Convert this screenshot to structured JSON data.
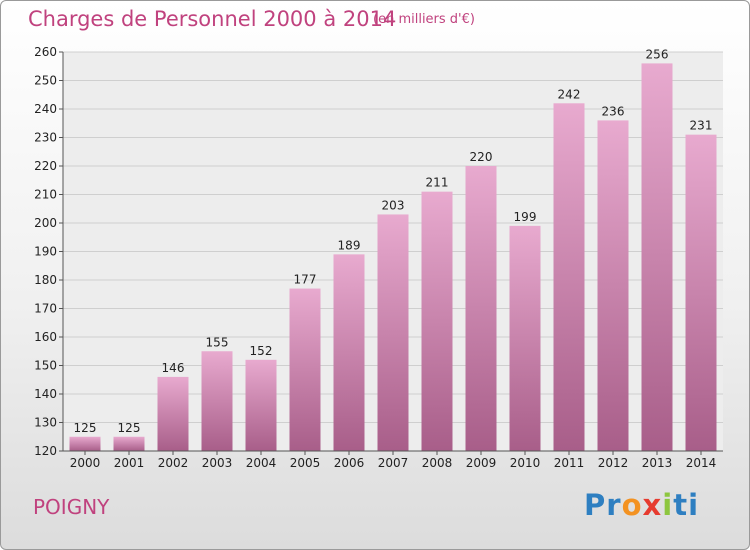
{
  "header": {
    "title": "Charges de Personnel 2000 à 2014",
    "subtitle": "(en milliers d'€)"
  },
  "footer": {
    "town": "POIGNY",
    "logo_letters": [
      "P",
      "r",
      "o",
      "x",
      "i",
      "t",
      "i"
    ],
    "logo_colors": [
      "#2e7fc1",
      "#2e7fc1",
      "#f39221",
      "#e63b2f",
      "#8dc63f",
      "#2e7fc1",
      "#2e7fc1"
    ]
  },
  "colors": {
    "title": "#c0427e",
    "bar_top": "#e8aacf",
    "bar_bottom": "#a85e89",
    "grid": "#cfcfcf",
    "axis_text": "#222222"
  },
  "chart_data": {
    "type": "bar",
    "categories": [
      "2000",
      "2001",
      "2002",
      "2003",
      "2004",
      "2005",
      "2006",
      "2007",
      "2008",
      "2009",
      "2010",
      "2011",
      "2012",
      "2013",
      "2014"
    ],
    "values": [
      125,
      125,
      146,
      155,
      152,
      177,
      189,
      203,
      211,
      220,
      199,
      242,
      236,
      256,
      231
    ],
    "ylim": [
      120,
      260
    ],
    "yticks": [
      120,
      130,
      140,
      150,
      160,
      170,
      180,
      190,
      200,
      210,
      220,
      230,
      240,
      250,
      260
    ],
    "grid": true,
    "xlabel": "",
    "ylabel": ""
  }
}
